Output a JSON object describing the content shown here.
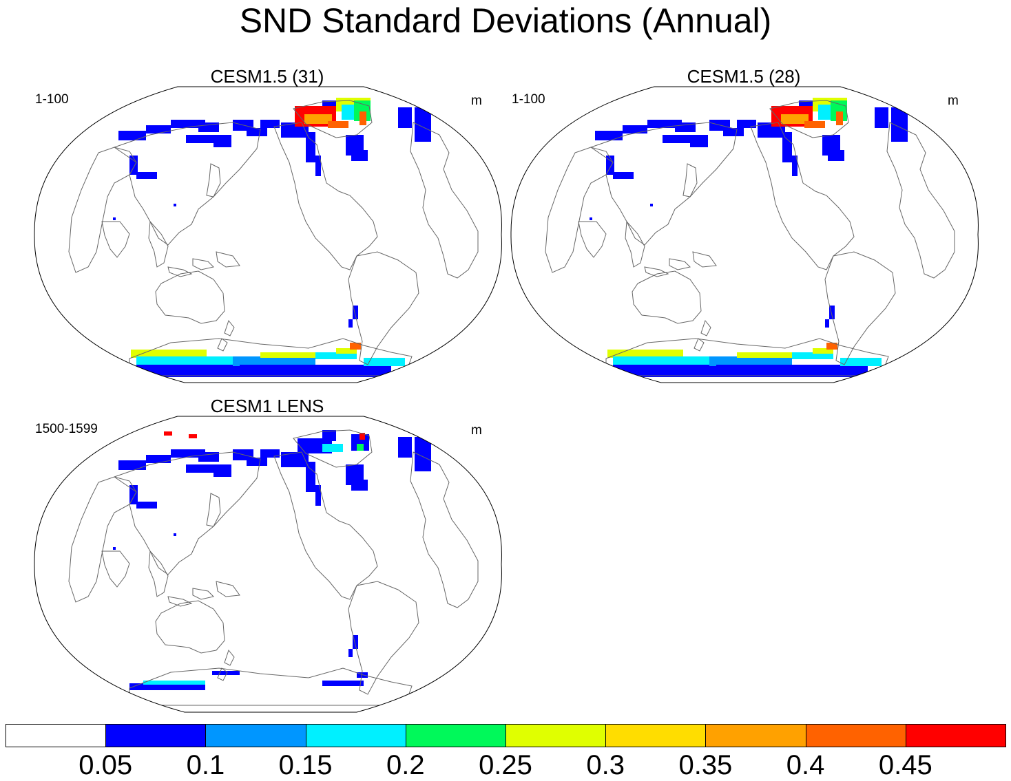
{
  "figure": {
    "title": "SND Standard Deviations (Annual)"
  },
  "panels": [
    {
      "title": "CESM1.5 (31)",
      "left_label": "1-100",
      "right_label": "m",
      "antarctic_strength": "high",
      "greenland_strength": "high"
    },
    {
      "title": "CESM1.5 (28)",
      "left_label": "1-100",
      "right_label": "m",
      "antarctic_strength": "high",
      "greenland_strength": "high"
    },
    {
      "title": "CESM1 LENS",
      "left_label": "1500-1599",
      "right_label": "m",
      "antarctic_strength": "low",
      "greenland_strength": "low"
    }
  ],
  "colorbar": {
    "colors": [
      "#ffffff",
      "#0000ff",
      "#0096ff",
      "#00f0ff",
      "#00f95a",
      "#e0ff00",
      "#ffdd00",
      "#ffa100",
      "#ff6200",
      "#ff0000"
    ],
    "labels": [
      "0.05",
      "0.1",
      "0.15",
      "0.2",
      "0.25",
      "0.3",
      "0.35",
      "0.4",
      "0.45"
    ]
  },
  "chart_data": {
    "type": "heatmap",
    "title": "SND Standard Deviations (Annual)",
    "variable": "SND",
    "units": "m",
    "levels": [
      0.05,
      0.1,
      0.15,
      0.2,
      0.25,
      0.3,
      0.35,
      0.4,
      0.45
    ],
    "panels": [
      "CESM1.5 (31)",
      "CESM1.5 (28)",
      "CESM1 LENS"
    ]
  }
}
